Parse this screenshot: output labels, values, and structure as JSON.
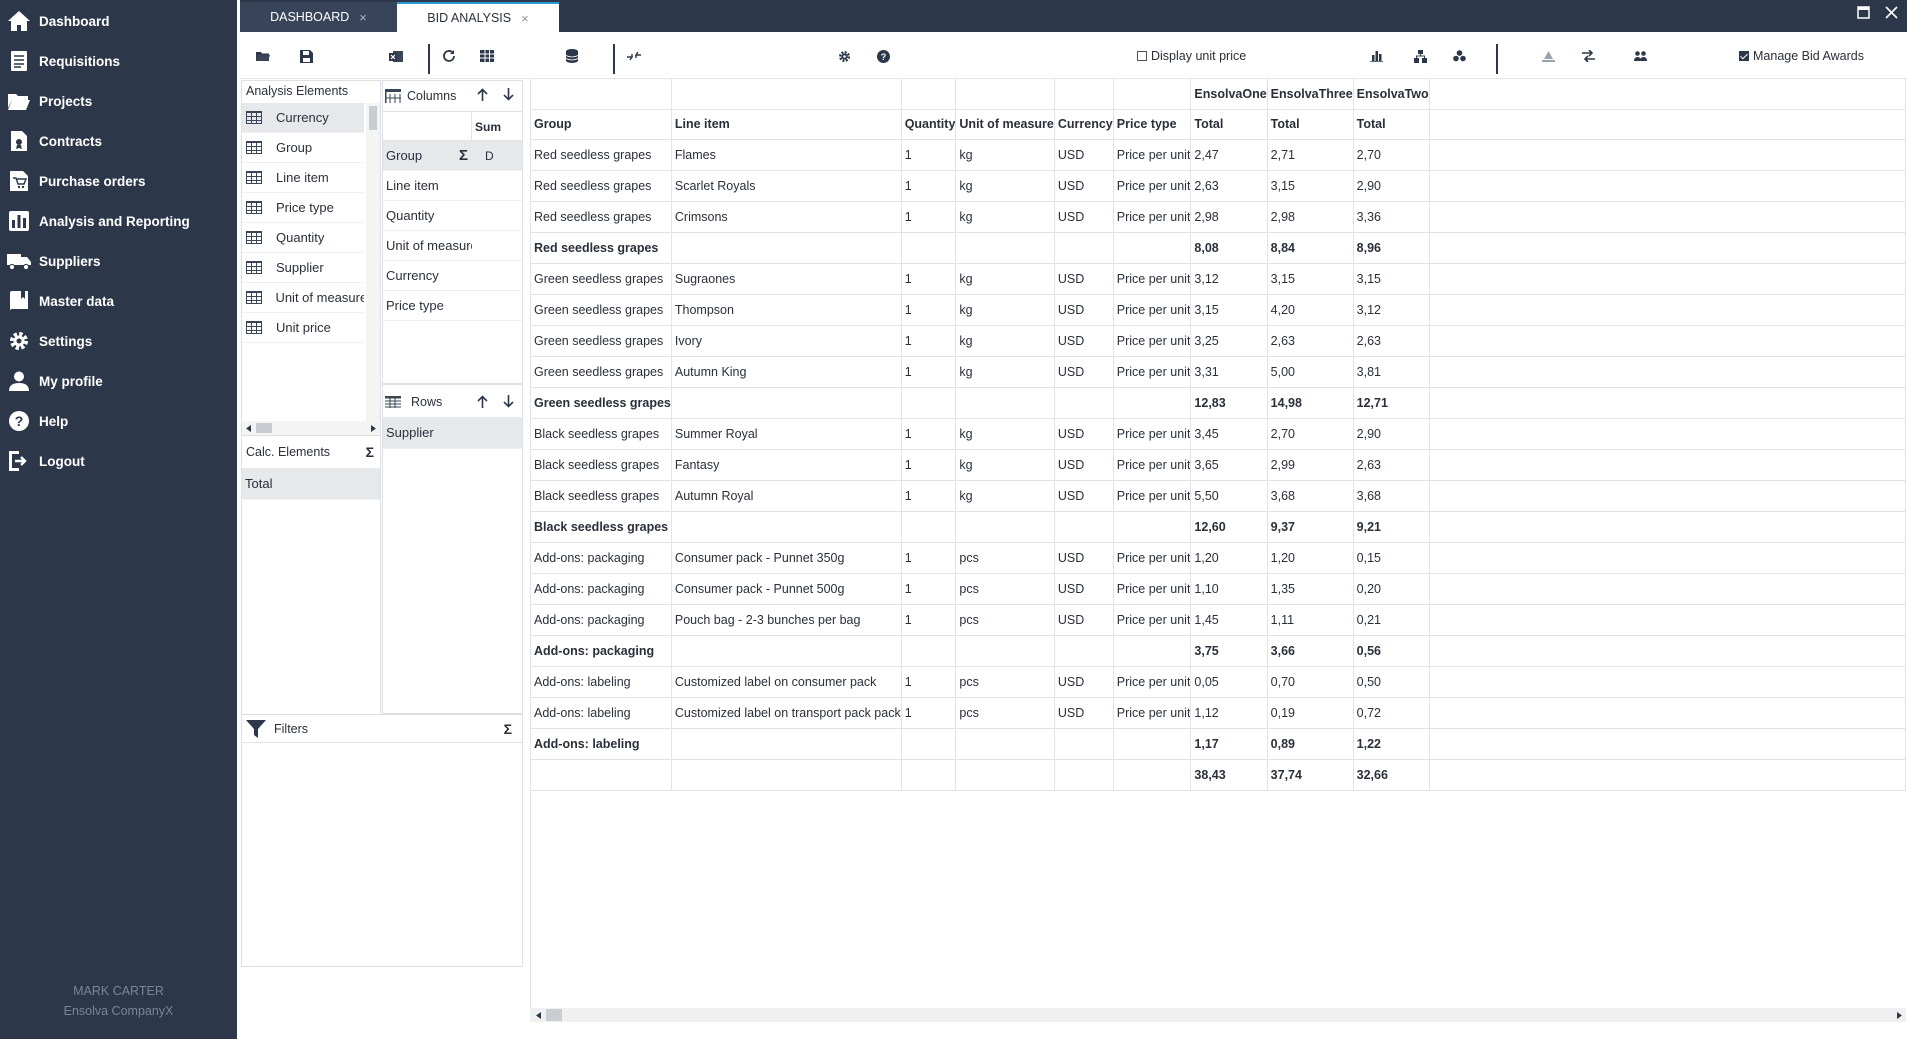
{
  "sidebar": {
    "items": [
      {
        "label": "Dashboard",
        "icon": "home-icon"
      },
      {
        "label": "Requisitions",
        "icon": "document-list-icon"
      },
      {
        "label": "Projects",
        "icon": "folder-open-icon"
      },
      {
        "label": "Contracts",
        "icon": "contract-icon"
      },
      {
        "label": "Purchase orders",
        "icon": "cart-document-icon"
      },
      {
        "label": "Analysis and Reporting",
        "icon": "bar-chart-icon"
      },
      {
        "label": "Suppliers",
        "icon": "truck-icon"
      },
      {
        "label": "Master data",
        "icon": "book-icon"
      },
      {
        "label": "Settings",
        "icon": "gear-icon"
      },
      {
        "label": "My profile",
        "icon": "user-icon"
      },
      {
        "label": "Help",
        "icon": "help-circle-icon"
      },
      {
        "label": "Logout",
        "icon": "logout-icon"
      }
    ],
    "user_name": "MARK CARTER",
    "company": "Ensolva CompanyX"
  },
  "tabs": [
    {
      "label": "DASHBOARD",
      "close": "×"
    },
    {
      "label": "BID ANALYSIS",
      "close": "×"
    }
  ],
  "window": {
    "maximize": "🗖",
    "close": "✕"
  },
  "toolbar": {
    "display_unit_price": "Display unit price",
    "display_unit_price_checked": false,
    "manage_bid_awards": "Manage Bid Awards",
    "manage_bid_awards_checked": true
  },
  "analysis_elements": {
    "title": "Analysis Elements",
    "items": [
      "Currency",
      "Group",
      "Line item",
      "Price type",
      "Quantity",
      "Supplier",
      "Unit of measure",
      "Unit price"
    ]
  },
  "columns_panel": {
    "title": "Columns",
    "sum_label": "Sum",
    "items": [
      "Group",
      "Line item",
      "Quantity",
      "Unit of measure",
      "Currency",
      "Price type"
    ],
    "group_flag": "D"
  },
  "rows_panel": {
    "title": "Rows",
    "items": [
      "Supplier"
    ]
  },
  "calc_elements": {
    "title": "Calc. Elements",
    "items": [
      "Total"
    ]
  },
  "filters": {
    "title": "Filters"
  },
  "table": {
    "suppliers": [
      "EnsolvaOne",
      "EnsolvaThree",
      "EnsolvaTwo"
    ],
    "headers": [
      "Group",
      "Line item",
      "Quantity",
      "Unit of measure",
      "Currency",
      "Price type",
      "Total",
      "Total",
      "Total"
    ],
    "rows": [
      {
        "sub": false,
        "cells": [
          "Red seedless grapes",
          "Flames",
          "1",
          "kg",
          "USD",
          "Price per unit",
          "2,47",
          "2,71",
          "2,70"
        ]
      },
      {
        "sub": false,
        "cells": [
          "Red seedless grapes",
          "Scarlet Royals",
          "1",
          "kg",
          "USD",
          "Price per unit",
          "2,63",
          "3,15",
          "2,90"
        ]
      },
      {
        "sub": false,
        "cells": [
          "Red seedless grapes",
          "Crimsons",
          "1",
          "kg",
          "USD",
          "Price per unit",
          "2,98",
          "2,98",
          "3,36"
        ]
      },
      {
        "sub": true,
        "cells": [
          "Red seedless grapes",
          "",
          "",
          "",
          "",
          "",
          "8,08",
          "8,84",
          "8,96"
        ]
      },
      {
        "sub": false,
        "cells": [
          "Green seedless grapes",
          "Sugraones",
          "1",
          "kg",
          "USD",
          "Price per unit",
          "3,12",
          "3,15",
          "3,15"
        ]
      },
      {
        "sub": false,
        "cells": [
          "Green seedless grapes",
          "Thompson",
          "1",
          "kg",
          "USD",
          "Price per unit",
          "3,15",
          "4,20",
          "3,12"
        ]
      },
      {
        "sub": false,
        "cells": [
          "Green seedless grapes",
          "Ivory",
          "1",
          "kg",
          "USD",
          "Price per unit",
          "3,25",
          "2,63",
          "2,63"
        ]
      },
      {
        "sub": false,
        "cells": [
          "Green seedless grapes",
          "Autumn King",
          "1",
          "kg",
          "USD",
          "Price per unit",
          "3,31",
          "5,00",
          "3,81"
        ]
      },
      {
        "sub": true,
        "cells": [
          "Green seedless grapes",
          "",
          "",
          "",
          "",
          "",
          "12,83",
          "14,98",
          "12,71"
        ]
      },
      {
        "sub": false,
        "cells": [
          "Black seedless grapes",
          "Summer Royal",
          "1",
          "kg",
          "USD",
          "Price per unit",
          "3,45",
          "2,70",
          "2,90"
        ]
      },
      {
        "sub": false,
        "cells": [
          "Black seedless grapes",
          "Fantasy",
          "1",
          "kg",
          "USD",
          "Price per unit",
          "3,65",
          "2,99",
          "2,63"
        ]
      },
      {
        "sub": false,
        "cells": [
          "Black seedless grapes",
          "Autumn Royal",
          "1",
          "kg",
          "USD",
          "Price per unit",
          "5,50",
          "3,68",
          "3,68"
        ]
      },
      {
        "sub": true,
        "cells": [
          "Black seedless grapes",
          "",
          "",
          "",
          "",
          "",
          "12,60",
          "9,37",
          "9,21"
        ]
      },
      {
        "sub": false,
        "cells": [
          "Add-ons: packaging",
          "Consumer pack - Punnet 350g",
          "1",
          "pcs",
          "USD",
          "Price per unit",
          "1,20",
          "1,20",
          "0,15"
        ]
      },
      {
        "sub": false,
        "cells": [
          "Add-ons: packaging",
          "Consumer pack - Punnet 500g",
          "1",
          "pcs",
          "USD",
          "Price per unit",
          "1,10",
          "1,35",
          "0,20"
        ]
      },
      {
        "sub": false,
        "cells": [
          "Add-ons: packaging",
          "Pouch bag - 2-3 bunches per bag",
          "1",
          "pcs",
          "USD",
          "Price per unit",
          "1,45",
          "1,11",
          "0,21"
        ]
      },
      {
        "sub": true,
        "cells": [
          "Add-ons: packaging",
          "",
          "",
          "",
          "",
          "",
          "3,75",
          "3,66",
          "0,56"
        ]
      },
      {
        "sub": false,
        "cells": [
          "Add-ons: labeling",
          "Customized label on consumer pack",
          "1",
          "pcs",
          "USD",
          "Price per unit",
          "0,05",
          "0,70",
          "0,50"
        ]
      },
      {
        "sub": false,
        "cells": [
          "Add-ons: labeling",
          "Customized label on transport pack pack",
          "1",
          "pcs",
          "USD",
          "Price per unit",
          "1,12",
          "0,19",
          "0,72"
        ]
      },
      {
        "sub": true,
        "cells": [
          "Add-ons: labeling",
          "",
          "",
          "",
          "",
          "",
          "1,17",
          "0,89",
          "1,22"
        ]
      },
      {
        "sub": true,
        "cells": [
          "",
          "",
          "",
          "",
          "",
          "",
          "38,43",
          "37,74",
          "32,66"
        ]
      }
    ]
  },
  "colors": {
    "sidebar": "#2c3849",
    "tab_active_border": "#2c9ad1",
    "selection": "#e6e8eb"
  }
}
